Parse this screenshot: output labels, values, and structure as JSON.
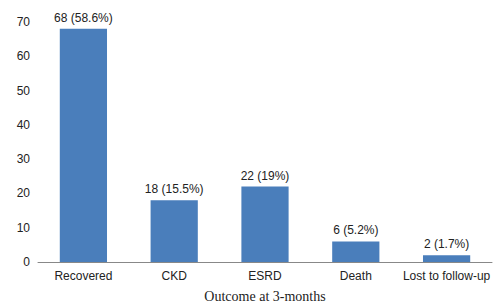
{
  "chart_data": {
    "type": "bar",
    "xlabel": "Outcome at 3-months",
    "categories": [
      "Recovered",
      "CKD",
      "ESRD",
      "Death",
      "Lost to follow-up"
    ],
    "values": [
      68,
      18,
      22,
      6,
      2
    ],
    "value_labels": [
      "68 (58.6%)",
      "18 (15.5%)",
      "22 (19%)",
      "6 (5.2%)",
      "2 (1.7%)"
    ],
    "data_labels": true,
    "color": "#4a7ebb",
    "ylim": [
      0,
      70
    ],
    "yticks": [
      0,
      10,
      20,
      30,
      40,
      50,
      60,
      70
    ],
    "grid": false
  }
}
